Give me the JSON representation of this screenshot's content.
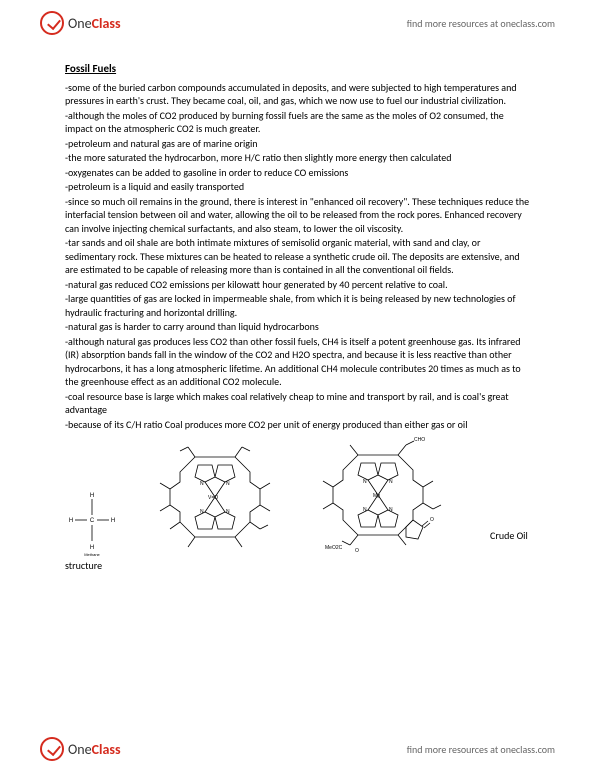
{
  "brand": {
    "one": "One",
    "class": "Class"
  },
  "tagline": "find more resources at oneclass.com",
  "title": "Fossil Fuels",
  "bullets": [
    "-some of the buried carbon compounds accumulated in deposits, and were subjected to high temperatures and pressures in earth's crust. They became coal, oil, and gas, which we now use to fuel our industrial civilization.",
    "-although the moles of CO2 produced by burning fossil fuels are the same as the moles of O2 consumed, the impact on the atmospheric CO2 is much greater.",
    "-petroleum and natural gas are of marine origin",
    "-the more saturated the hydrocarbon, more H/C ratio then slightly more energy then calculated",
    "-oxygenates can be added to gasoline in order to reduce CO emissions",
    "-petroleum is a liquid and easily transported",
    "-since so much oil remains in the ground, there is interest in \"enhanced oil recovery\". These techniques reduce the interfacial tension between oil and water, allowing the oil to be released from the rock pores. Enhanced recovery can involve injecting chemical surfactants, and also steam, to lower the oil viscosity.",
    "-tar sands and oil shale are both intimate mixtures of semisolid organic material, with sand and clay, or sedimentary rock. These mixtures can be heated to release a synthetic crude oil. The deposits are extensive, and are estimated to be capable of releasing more than is contained in all the conventional oil fields.",
    "-natural gas reduced CO2 emissions per kilowatt hour generated by 40 percent relative to coal.",
    "-large quantities of gas are locked in impermeable shale, from which it is being released by new technologies of hydraulic fracturing and horizontal drilling.",
    "-natural gas is harder to carry around than liquid hydrocarbons",
    "-although natural gas produces less CO2 than other fossil fuels, CH4 is itself a potent greenhouse gas. Its infrared (IR) absorption bands fall in the window of the CO2 and H2O spectra, and because it is less reactive than other hydrocarbons, it has a long atmospheric lifetime. An additional CH4 molecule contributes 20 times as much as to the greenhouse effect as an additional CO2 molecule.",
    "-coal resource base is large which makes coal relatively cheap to mine and transport by rail, and is coal's great advantage",
    "-because of its C/H ratio Coal produces more CO2 per unit of energy produced than either gas or oil"
  ],
  "captions": {
    "right": "Crude Oil",
    "below": "structure"
  },
  "diagrams": {
    "methane": {
      "width": 55,
      "height": 70,
      "stroke": "#000000",
      "stroke_width": 0.8,
      "label_top": "H",
      "label_bottom": "H",
      "label_left": "H",
      "label_right": "H",
      "center": "C",
      "sub": "Methane",
      "font_size": 6
    },
    "porphyrin_a": {
      "width": 130,
      "height": 120,
      "stroke": "#000000",
      "stroke_width": 0.8,
      "center_label": "V=O",
      "font_size": 5
    },
    "porphyrin_b": {
      "width": 140,
      "height": 120,
      "stroke": "#000000",
      "stroke_width": 0.8,
      "center_label": "Mg",
      "cho": "CHO",
      "meo2c": "MeO2C",
      "o": "O",
      "font_size": 5
    }
  },
  "colors": {
    "text": "#000000",
    "brand_red": "#d52b1e",
    "tagline": "#666666",
    "bg": "#ffffff"
  }
}
